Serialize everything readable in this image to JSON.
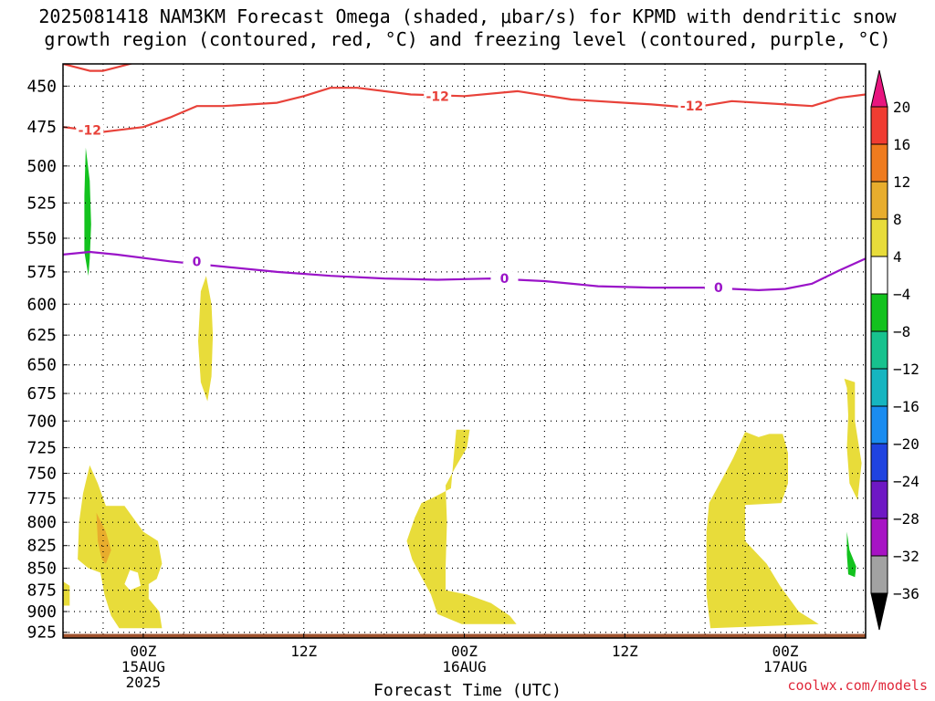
{
  "title_line1": "2025081418 NAM3KM Forecast Omega (shaded, μbar/s) for KPMD with dendritic snow",
  "title_line2": "growth region (contoured, red, °C) and freezing level (contoured, purple, °C)",
  "credit": "coolwx.com/models",
  "chart_data": {
    "type": "heatmap",
    "xlabel": "Forecast Time (UTC)",
    "ylabel": "",
    "x_range_hours": [
      0,
      60
    ],
    "ylim": [
      437,
      932
    ],
    "y_scale": "log-pressure (hPa)",
    "y_ticks": [
      450,
      475,
      500,
      525,
      550,
      575,
      600,
      625,
      650,
      675,
      700,
      725,
      750,
      775,
      800,
      825,
      850,
      875,
      900,
      925
    ],
    "x_ticks": [
      {
        "hour": 6,
        "lines": [
          "00Z",
          "15AUG",
          "2025"
        ]
      },
      {
        "hour": 18,
        "lines": [
          "12Z"
        ]
      },
      {
        "hour": 30,
        "lines": [
          "00Z",
          "16AUG"
        ]
      },
      {
        "hour": 42,
        "lines": [
          "12Z"
        ]
      },
      {
        "hour": 54,
        "lines": [
          "00Z",
          "17AUG"
        ]
      }
    ],
    "grid": true,
    "colorbar": {
      "labels": [
        "20",
        "16",
        "12",
        "8",
        "4",
        "−4",
        "−8",
        "−12",
        "−16",
        "−20",
        "−24",
        "−28",
        "−32",
        "−36"
      ],
      "colors": [
        "#e8157f",
        "#f03c32",
        "#ef7b1e",
        "#e8ad2d",
        "#e8dc3a",
        "#ffffff",
        "#13c21e",
        "#17c28e",
        "#16b5c0",
        "#1a8cf0",
        "#1f43e0",
        "#6e18c4",
        "#a713c4",
        "#a2a2a2",
        "#000000"
      ]
    },
    "series": [
      {
        "name": "-12",
        "color": "#e8423a",
        "points": [
          [
            0,
            437
          ],
          [
            2,
            441
          ],
          [
            3,
            441
          ],
          [
            6,
            435
          ],
          [
            0,
            475
          ],
          [
            3,
            478
          ],
          [
            6,
            475
          ],
          [
            8,
            469
          ],
          [
            10,
            462
          ],
          [
            12,
            462
          ],
          [
            16,
            460
          ],
          [
            18,
            456
          ],
          [
            20,
            451
          ],
          [
            22,
            451
          ],
          [
            26,
            455
          ],
          [
            30,
            456
          ],
          [
            34,
            453
          ],
          [
            38,
            458
          ],
          [
            42,
            460
          ],
          [
            44,
            461
          ],
          [
            47,
            463
          ],
          [
            50,
            459
          ],
          [
            54,
            461
          ],
          [
            56,
            462
          ],
          [
            58,
            457
          ],
          [
            60,
            455
          ]
        ],
        "breaks": [
          [
            0,
            3
          ]
        ],
        "labels": [
          [
            2,
            477
          ],
          [
            28,
            456
          ],
          [
            47,
            462
          ]
        ]
      },
      {
        "name": "0",
        "color": "#9a14c8",
        "points": [
          [
            0,
            562
          ],
          [
            2,
            560
          ],
          [
            4,
            562
          ],
          [
            8,
            567
          ],
          [
            12,
            571
          ],
          [
            16,
            575
          ],
          [
            20,
            578
          ],
          [
            24,
            580
          ],
          [
            28,
            581
          ],
          [
            32,
            580
          ],
          [
            36,
            582
          ],
          [
            40,
            586
          ],
          [
            44,
            587
          ],
          [
            48,
            587
          ],
          [
            52,
            589
          ],
          [
            54,
            588
          ],
          [
            56,
            584
          ],
          [
            58,
            574
          ],
          [
            60,
            565
          ]
        ],
        "labels": [
          [
            10,
            567
          ],
          [
            33,
            580
          ],
          [
            49,
            587
          ]
        ]
      }
    ],
    "shaded_regions": [
      {
        "color": "#e8dc3a",
        "points": [
          [
            0,
            865
          ],
          [
            0.5,
            870
          ],
          [
            0.5,
            893
          ],
          [
            0,
            893
          ]
        ]
      },
      {
        "color": "#e8dc3a",
        "points": [
          [
            1.1,
            840
          ],
          [
            1.2,
            800
          ],
          [
            1.5,
            770
          ],
          [
            2,
            742
          ],
          [
            2.6,
            760
          ],
          [
            3.2,
            783
          ],
          [
            4.6,
            783
          ],
          [
            6,
            810
          ],
          [
            7.1,
            820
          ],
          [
            7.4,
            845
          ],
          [
            7,
            862
          ],
          [
            6.4,
            868
          ],
          [
            6.4,
            885
          ],
          [
            7.2,
            900
          ],
          [
            7.4,
            920
          ],
          [
            4.2,
            920
          ],
          [
            3.6,
            905
          ],
          [
            3.1,
            880
          ],
          [
            2.8,
            855
          ],
          [
            1.9,
            850
          ]
        ]
      },
      {
        "color": "#e8ad2d",
        "points": [
          [
            2.5,
            790
          ],
          [
            3.2,
            810
          ],
          [
            3.6,
            830
          ],
          [
            3.2,
            845
          ],
          [
            2.9,
            840
          ],
          [
            2.6,
            820
          ]
        ]
      },
      {
        "color": "#ffffff",
        "points": [
          [
            5,
            852
          ],
          [
            5.6,
            855
          ],
          [
            5.8,
            870
          ],
          [
            5,
            875
          ],
          [
            4.6,
            868
          ]
        ]
      },
      {
        "color": "#13c21e",
        "points": [
          [
            1.7,
            488
          ],
          [
            2,
            510
          ],
          [
            2.1,
            540
          ],
          [
            2,
            565
          ],
          [
            1.9,
            578
          ],
          [
            1.6,
            560
          ],
          [
            1.6,
            520
          ]
        ]
      },
      {
        "color": "#e8dc3a",
        "points": [
          [
            10.3,
            590
          ],
          [
            10.7,
            578
          ],
          [
            11.1,
            600
          ],
          [
            11.2,
            625
          ],
          [
            11.1,
            660
          ],
          [
            10.8,
            682
          ],
          [
            10.3,
            665
          ],
          [
            10.1,
            630
          ]
        ]
      },
      {
        "color": "#e8dc3a",
        "points": [
          [
            29.4,
            708
          ],
          [
            30.4,
            708
          ],
          [
            30.2,
            725
          ],
          [
            29.3,
            745
          ],
          [
            28.6,
            762
          ],
          [
            28.7,
            800
          ],
          [
            28.6,
            850
          ],
          [
            28.6,
            875
          ],
          [
            30.2,
            880
          ],
          [
            32,
            890
          ],
          [
            33.4,
            905
          ],
          [
            33.9,
            915
          ],
          [
            29.8,
            915
          ],
          [
            28,
            903
          ],
          [
            27.5,
            880
          ],
          [
            26.8,
            860
          ],
          [
            26.1,
            840
          ],
          [
            25.7,
            820
          ],
          [
            26.3,
            795
          ],
          [
            26.8,
            780
          ],
          [
            27.6,
            775
          ],
          [
            29,
            765
          ],
          [
            29.2,
            735
          ]
        ]
      },
      {
        "color": "#e8dc3a",
        "points": [
          [
            49.3,
            755
          ],
          [
            50.1,
            735
          ],
          [
            51,
            710
          ],
          [
            52,
            715
          ],
          [
            52.8,
            712
          ],
          [
            53.8,
            712
          ],
          [
            54.2,
            730
          ],
          [
            54.2,
            760
          ],
          [
            53.7,
            780
          ],
          [
            51,
            782
          ],
          [
            51,
            820
          ],
          [
            52.6,
            845
          ],
          [
            53.6,
            870
          ],
          [
            55,
            900
          ],
          [
            56.5,
            915
          ],
          [
            48.4,
            920
          ],
          [
            48.1,
            880
          ],
          [
            48.1,
            810
          ],
          [
            48.3,
            780
          ]
        ]
      },
      {
        "color": "#e8dc3a",
        "points": [
          [
            58.4,
            662
          ],
          [
            59.2,
            665
          ],
          [
            59.2,
            700
          ],
          [
            59.7,
            740
          ],
          [
            59.4,
            777
          ],
          [
            58.8,
            760
          ],
          [
            58.6,
            725
          ],
          [
            58.7,
            695
          ],
          [
            58.6,
            670
          ]
        ]
      },
      {
        "color": "#13c21e",
        "points": [
          [
            58.6,
            810
          ],
          [
            58.8,
            830
          ],
          [
            59.3,
            848
          ],
          [
            59.2,
            860
          ],
          [
            58.7,
            857
          ],
          [
            58.6,
            835
          ]
        ]
      }
    ],
    "terrain": {
      "color": "#a0522d",
      "top_hpa": 927
    }
  }
}
